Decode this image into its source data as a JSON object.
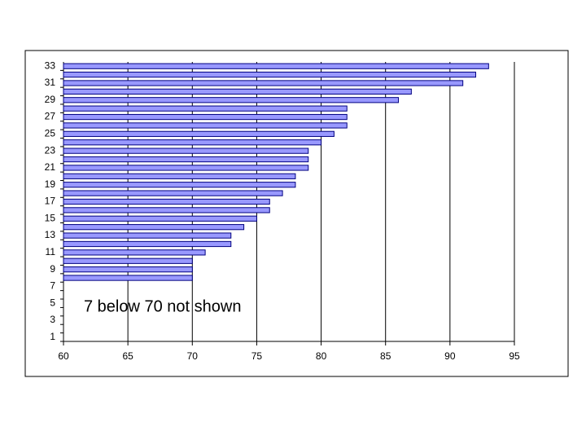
{
  "chart_data": {
    "type": "bar",
    "orientation": "horizontal",
    "categories": [
      1,
      null,
      3,
      null,
      5,
      null,
      7,
      null,
      9,
      null,
      11,
      null,
      13,
      null,
      15,
      null,
      17,
      null,
      19,
      null,
      21,
      null,
      23,
      null,
      25,
      null,
      27,
      null,
      29,
      null,
      31,
      null,
      33
    ],
    "values": [
      null,
      null,
      null,
      null,
      null,
      null,
      null,
      70,
      70,
      70,
      71,
      73,
      73,
      74,
      75,
      76,
      76,
      77,
      78,
      78,
      79,
      79,
      79,
      80,
      81,
      82,
      82,
      82,
      86,
      87,
      91,
      92,
      93
    ],
    "color": "#9999ff",
    "xlim": [
      60,
      95
    ],
    "xticks": [
      60,
      65,
      70,
      75,
      80,
      85,
      90,
      95
    ],
    "grid": true,
    "annotation": "7 below 70 not shown"
  }
}
